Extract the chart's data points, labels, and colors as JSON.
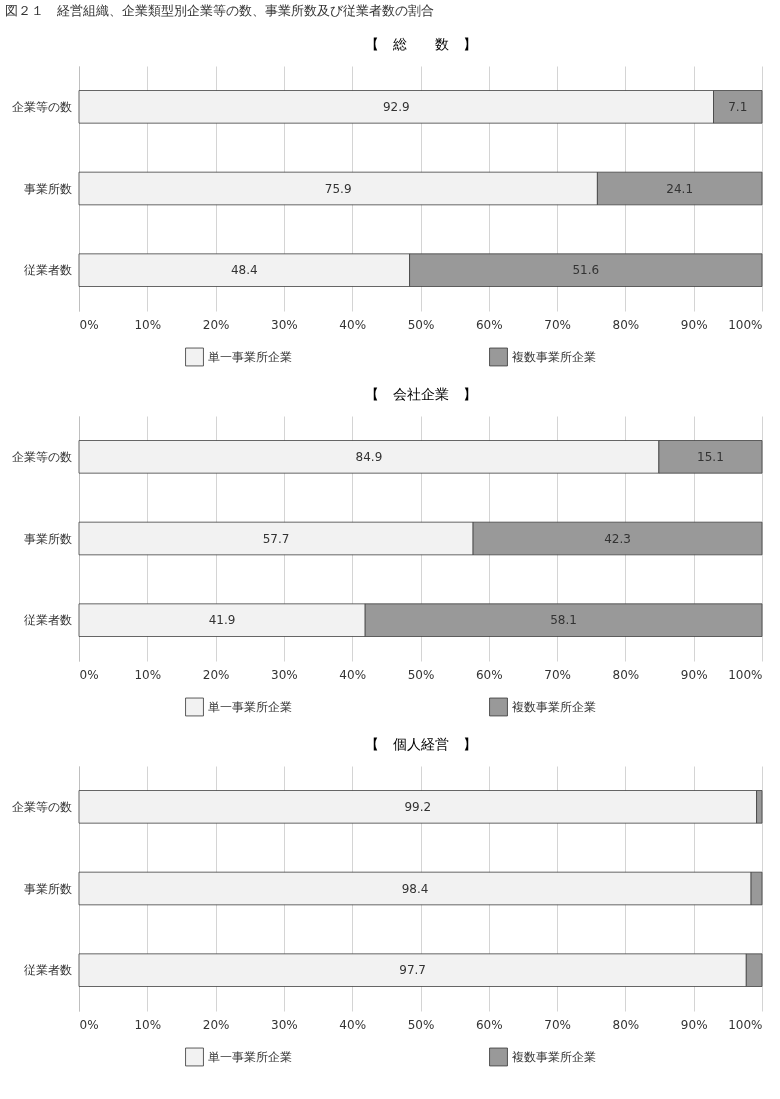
{
  "chart_data": [
    {
      "type": "bar",
      "orientation": "horizontal",
      "stacked": true,
      "title": "【　総　　数　】",
      "annotations": [
        "図２１　経営組織、企業類型別企業等の数、事業所数及び従業者数の割合"
      ],
      "categories": [
        "企業等の数",
        "事業所数",
        "従業者数"
      ],
      "series": [
        {
          "name": "単一事業所企業",
          "color": "#f2f2f2",
          "values": [
            92.9,
            75.9,
            48.4
          ]
        },
        {
          "name": "複数事業所企業",
          "color": "#999999",
          "values": [
            7.1,
            24.1,
            51.6
          ]
        }
      ],
      "xlim": [
        0,
        100
      ],
      "xticks": [
        {
          "value": 0,
          "label": "0%"
        },
        {
          "value": 10,
          "label": "10%"
        },
        {
          "value": 20,
          "label": "20%"
        },
        {
          "value": 30,
          "label": "30%"
        },
        {
          "value": 40,
          "label": "40%"
        },
        {
          "value": 50,
          "label": "50%"
        },
        {
          "value": 60,
          "label": "60%"
        },
        {
          "value": 70,
          "label": "70%"
        },
        {
          "value": 80,
          "label": "80%"
        },
        {
          "value": 90,
          "label": "90%"
        },
        {
          "value": 100,
          "label": "100%"
        }
      ],
      "grid": "x",
      "legend": "bottom",
      "data_labels": true
    },
    {
      "type": "bar",
      "orientation": "horizontal",
      "stacked": true,
      "title": "【　会社企業　】",
      "categories": [
        "企業等の数",
        "事業所数",
        "従業者数"
      ],
      "series": [
        {
          "name": "単一事業所企業",
          "color": "#f2f2f2",
          "values": [
            84.9,
            57.7,
            41.9
          ]
        },
        {
          "name": "複数事業所企業",
          "color": "#999999",
          "values": [
            15.1,
            42.3,
            58.1
          ]
        }
      ],
      "xlim": [
        0,
        100
      ],
      "xticks": [
        {
          "value": 0,
          "label": "0%"
        },
        {
          "value": 10,
          "label": "10%"
        },
        {
          "value": 20,
          "label": "20%"
        },
        {
          "value": 30,
          "label": "30%"
        },
        {
          "value": 40,
          "label": "40%"
        },
        {
          "value": 50,
          "label": "50%"
        },
        {
          "value": 60,
          "label": "60%"
        },
        {
          "value": 70,
          "label": "70%"
        },
        {
          "value": 80,
          "label": "80%"
        },
        {
          "value": 90,
          "label": "90%"
        },
        {
          "value": 100,
          "label": "100%"
        }
      ],
      "grid": "x",
      "legend": "bottom",
      "data_labels": true
    },
    {
      "type": "bar",
      "orientation": "horizontal",
      "stacked": true,
      "title": "【　個人経営　】",
      "categories": [
        "企業等の数",
        "事業所数",
        "従業者数"
      ],
      "series": [
        {
          "name": "単一事業所企業",
          "color": "#f2f2f2",
          "values": [
            99.2,
            98.4,
            97.7
          ],
          "value_labels": [
            "99.2",
            "98.4",
            "97.7"
          ]
        },
        {
          "name": "複数事業所企業",
          "color": "#999999",
          "values": [
            0.8,
            1.6,
            2.3
          ]
        }
      ],
      "xlim": [
        0,
        100
      ],
      "xticks": [
        {
          "value": 0,
          "label": "0%"
        },
        {
          "value": 10,
          "label": "10%"
        },
        {
          "value": 20,
          "label": "20%"
        },
        {
          "value": 30,
          "label": "30%"
        },
        {
          "value": 40,
          "label": "40%"
        },
        {
          "value": 50,
          "label": "50%"
        },
        {
          "value": 60,
          "label": "60%"
        },
        {
          "value": 70,
          "label": "70%"
        },
        {
          "value": 80,
          "label": "80%"
        },
        {
          "value": 90,
          "label": "90%"
        },
        {
          "value": 100,
          "label": "100%"
        }
      ],
      "grid": "x",
      "legend": "bottom"
    }
  ]
}
